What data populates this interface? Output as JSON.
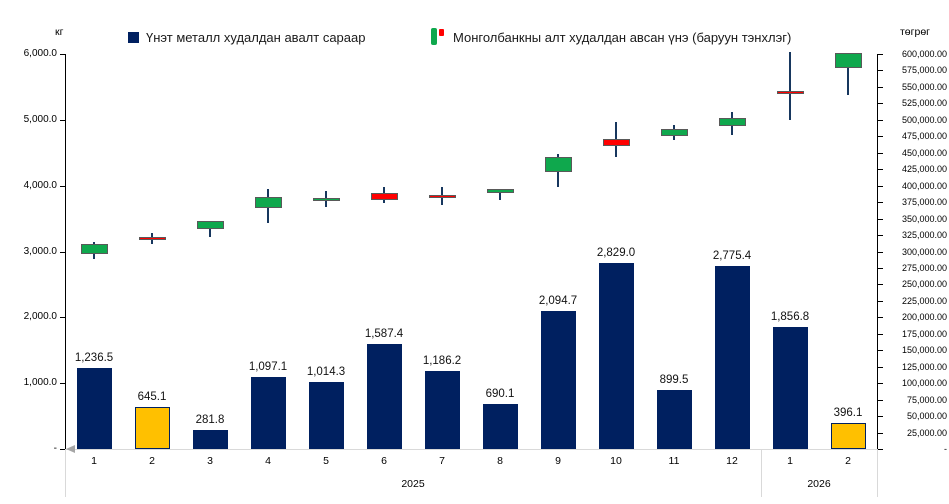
{
  "legend": {
    "bars_label": "Үнэт металл худалдан авалт сараар",
    "candles_label": "Монголбанкны алт худалдан авсан үнэ (баруун тэнхлэг)"
  },
  "axes_units": {
    "left_unit": "кг",
    "right_unit": "төгрөг"
  },
  "chart_data": {
    "type": "combo-bar-candlestick",
    "categories": [
      "1",
      "2",
      "3",
      "4",
      "5",
      "6",
      "7",
      "8",
      "9",
      "10",
      "11",
      "12",
      "1",
      "2"
    ],
    "year_groups": [
      {
        "label": "2025",
        "months": 12
      },
      {
        "label": "2026",
        "months": 2
      }
    ],
    "bar_series": {
      "name": "Үнэт металл худалдан авалт сараар",
      "axis": "left",
      "unit": "кг",
      "values": [
        1236.5,
        645.1,
        281.8,
        1097.1,
        1014.3,
        1587.4,
        1186.2,
        690.1,
        2094.7,
        2829.0,
        899.5,
        2775.4,
        1856.8,
        396.1
      ],
      "value_labels": [
        "1,236.5",
        "645.1",
        "281.8",
        "1,097.1",
        "1,014.3",
        "1,587.4",
        "1,186.2",
        "690.1",
        "2,094.7",
        "2,829.0",
        "899.5",
        "2,775.4",
        "1,856.8",
        "396.1"
      ],
      "highlight_indices": [
        1,
        13
      ]
    },
    "candle_series": {
      "name": "Монголбанкны алт худалдан авсан үнэ (баруун тэнхлэг)",
      "axis": "right",
      "unit": "төгрөг",
      "ohlc_estimated": [
        [
          296000,
          314500,
          288500,
          311500
        ],
        [
          322000,
          328000,
          311500,
          317000
        ],
        [
          334000,
          346500,
          322000,
          346500
        ],
        [
          366000,
          395000,
          343500,
          383000
        ],
        [
          376500,
          392000,
          367500,
          381500
        ],
        [
          389000,
          398000,
          373500,
          378000
        ],
        [
          386000,
          398000,
          370500,
          381500
        ],
        [
          389000,
          395000,
          378000,
          395000
        ],
        [
          421000,
          448000,
          398000,
          443500
        ],
        [
          471000,
          496500,
          443500,
          460500
        ],
        [
          475000,
          492000,
          469500,
          486000
        ],
        [
          490500,
          512000,
          477000,
          503000
        ],
        [
          544000,
          603000,
          500000,
          538500
        ],
        [
          578000,
          601500,
          537500,
          601500
        ]
      ]
    },
    "left_axis": {
      "unit": "кг",
      "min": 0,
      "max": 6000,
      "tick_labels_top_to_bottom": [
        "6,000.0",
        "5,000.0",
        "4,000.0",
        "3,000.0",
        "2,000.0",
        "1,000.0",
        "-"
      ]
    },
    "right_axis": {
      "unit": "төгрөг",
      "min": 0,
      "max": 600000,
      "tick_labels_top_to_bottom": [
        "600,000.00",
        "575,000.00",
        "550,000.00",
        "525,000.00",
        "500,000.00",
        "475,000.00",
        "450,000.00",
        "425,000.00",
        "400,000.00",
        "375,000.00",
        "350,000.00",
        "325,000.00",
        "300,000.00",
        "275,000.00",
        "250,000.00",
        "225,000.00",
        "200,000.00",
        "175,000.00",
        "150,000.00",
        "125,000.00",
        "100,000.00",
        "75,000.00",
        "50,000.00",
        "25,000.00",
        "-"
      ]
    },
    "grid": "off",
    "legend_position": "top",
    "colors": {
      "bar": "#002060",
      "bar_highlight": "#FFC000",
      "bar_highlight_border": "#002060",
      "candle_up": "#0FA84D",
      "candle_down": "#FF0000",
      "candle_border": "#595959",
      "wick": "#17375E",
      "axis_line": "#000000",
      "band_line": "#D9D9D9",
      "origin_marker": "#A6A6A6"
    }
  }
}
